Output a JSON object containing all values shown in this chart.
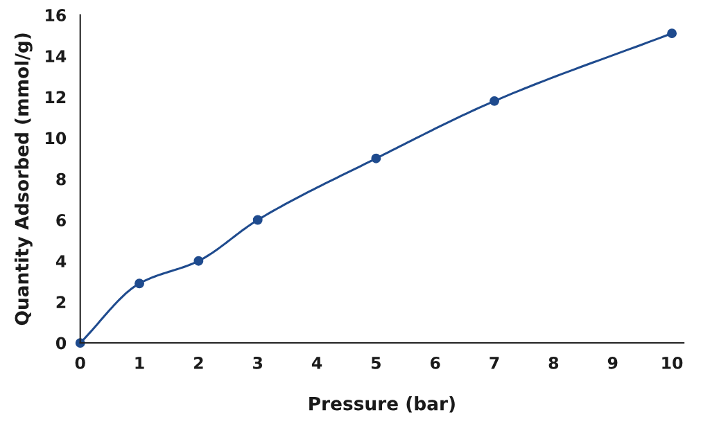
{
  "chart_data": {
    "type": "line",
    "xlabel": "Pressure (bar)",
    "ylabel": "Quantity Adsorbed (mmol/g)",
    "x": [
      0,
      1,
      2,
      3,
      5,
      7,
      10
    ],
    "series": [
      {
        "color": "#1f4b8e",
        "values": [
          0,
          2.9,
          4.0,
          6.0,
          9.0,
          11.8,
          15.1
        ]
      }
    ],
    "xlim": [
      0,
      10.2
    ],
    "xticks": [
      0,
      1,
      2,
      3,
      4,
      5,
      6,
      7,
      8,
      9,
      10
    ],
    "ylim": [
      0,
      16
    ],
    "yticks": [
      0,
      2,
      4,
      6,
      8,
      10,
      12,
      14,
      16
    ],
    "grid": false,
    "legend": false,
    "marker": "circle",
    "line_style": "solid"
  }
}
